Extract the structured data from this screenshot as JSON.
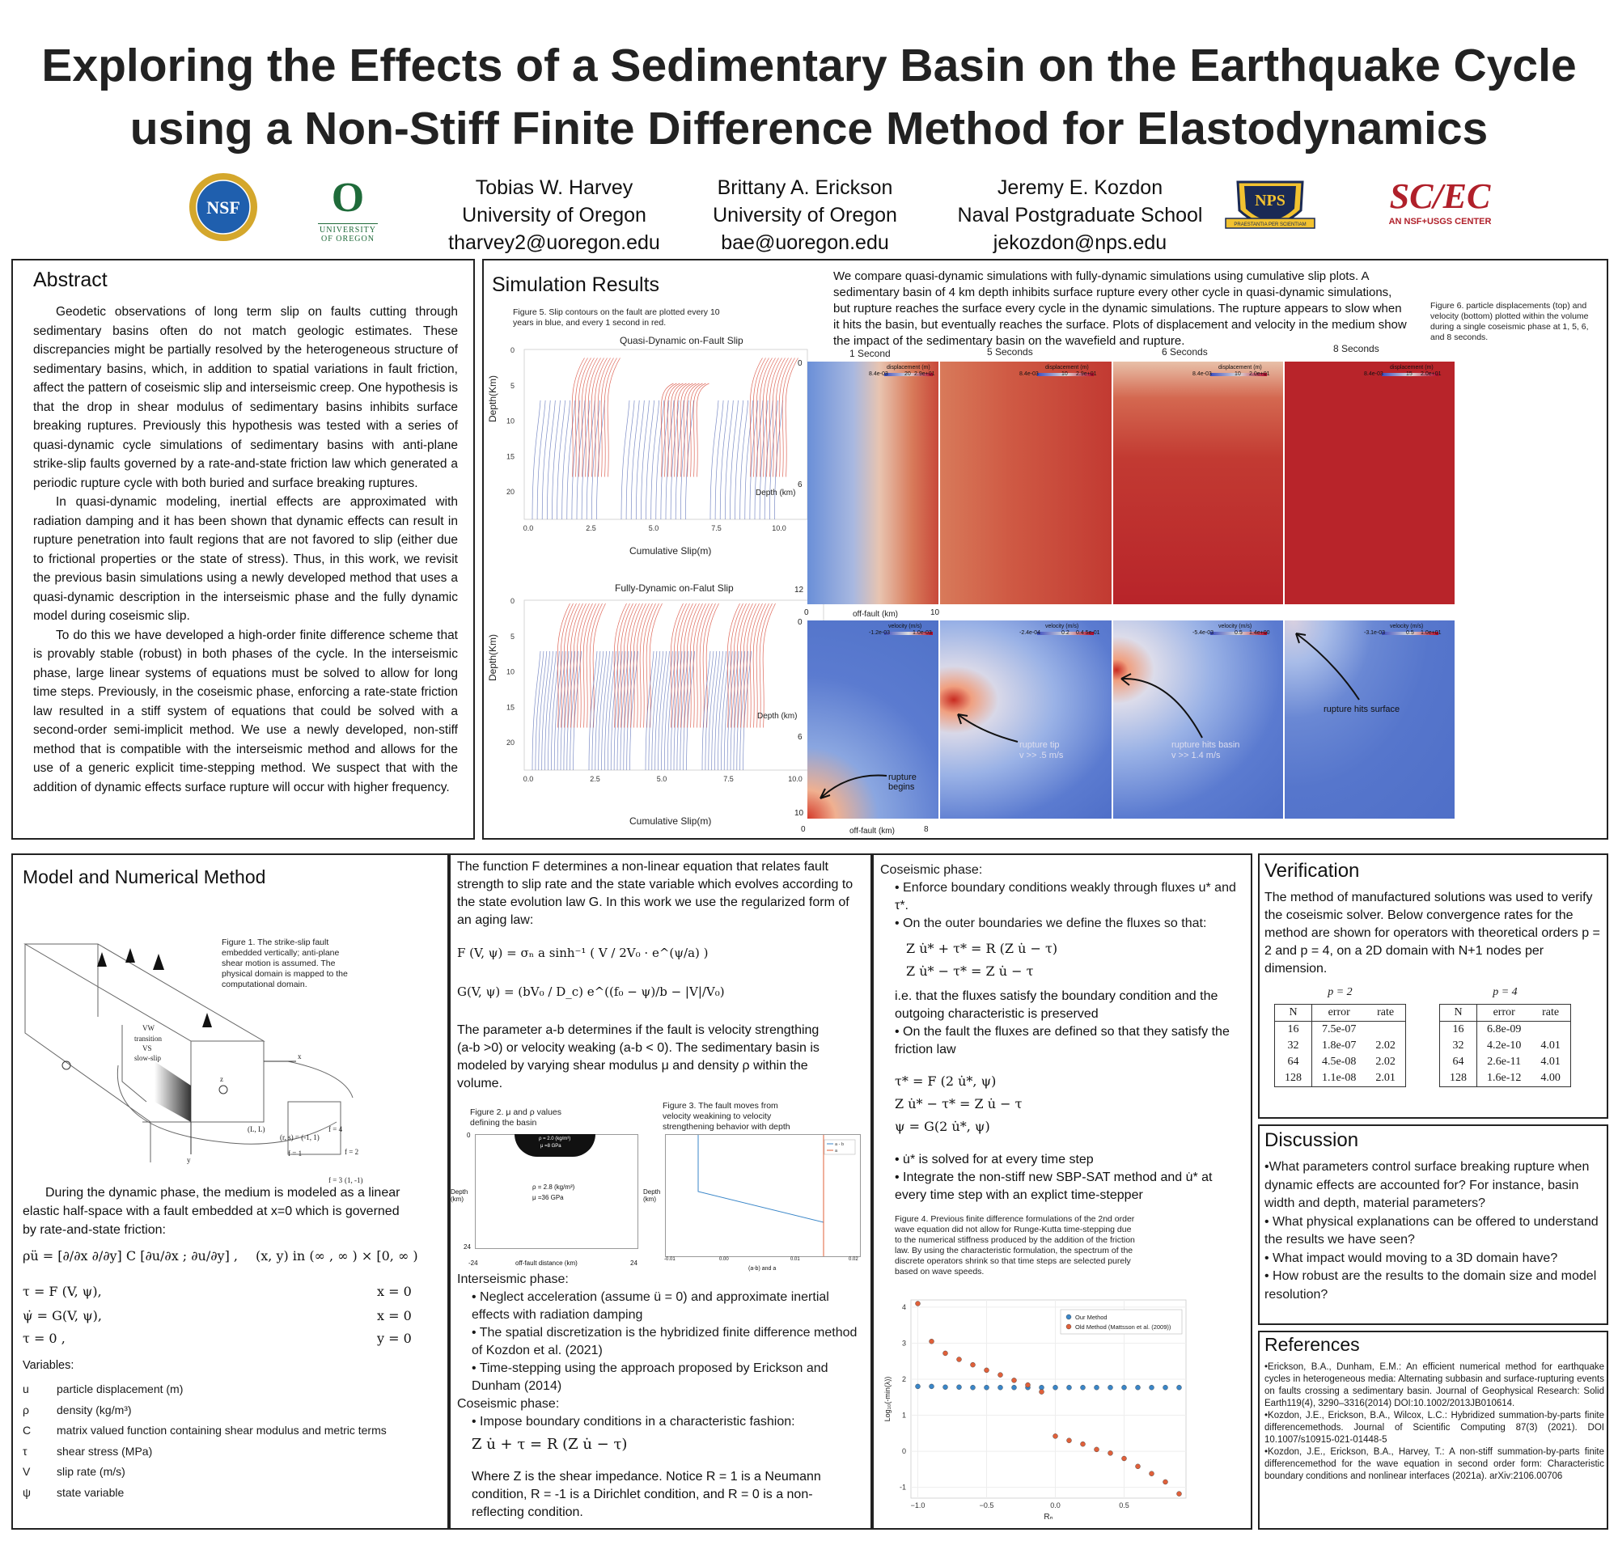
{
  "header": {
    "title_line1": "Exploring the Effects of a Sedimentary Basin on the Earthquake Cycle",
    "title_line2": "using a Non-Stiff Finite Difference Method for Elastodynamics",
    "authors": [
      {
        "name": "Tobias W. Harvey",
        "affiliation": "University of Oregon",
        "email": "tharvey2@uoregon.edu"
      },
      {
        "name": "Brittany A. Erickson",
        "affiliation": "University of Oregon",
        "email": "bae@uoregon.edu"
      },
      {
        "name": "Jeremy E. Kozdon",
        "affiliation": "Naval Postgraduate School",
        "email": "jekozdon@nps.edu"
      }
    ],
    "logos": {
      "nsf": "NSF",
      "uo_letter": "O",
      "uo_line1": "UNIVERSITY",
      "uo_line2": "OF OREGON",
      "nps": "NPS",
      "nps_motto": "PRAESTANTIA PER SCIENTIAM",
      "scec": "SC/EC",
      "scec_sub": "AN NSF+USGS CENTER"
    }
  },
  "abstract": {
    "title": "Abstract",
    "p1": "Geodetic observations of long term slip on faults cutting through sedimentary basins often do not match geologic estimates. These discrepancies might be partially resolved by the heterogeneous structure of sedimentary basins, which, in addition to spatial variations in fault friction, affect the pattern of coseismic slip and interseismic creep. One hypothesis is that the drop in shear modulus of sedimentary basins inhibits surface breaking ruptures. Previously this hypothesis was tested with a series of quasi-dynamic cycle simulations of sedimentary basins with anti-plane strike-slip faults governed by a rate-and-state friction law which generated a periodic rupture cycle with both buried and surface breaking ruptures.",
    "p2": "In quasi-dynamic modeling, inertial effects are approximated with radiation damping and it has been shown that dynamic effects can result in rupture penetration into fault regions that are not favored to slip (either due to frictional properties or the state of stress). Thus, in this work, we revisit the previous basin simulations using a newly developed method that uses a quasi-dynamic description in the interseismic phase and the fully dynamic model during coseismic slip.",
    "p3": "To do this we have developed a high-order finite difference scheme that is provably stable (robust) in both phases of the cycle. In the interseismic phase, large linear systems of equations must be solved to allow for long time steps. Previously, in the coseismic phase, enforcing a rate-state friction law resulted in a stiff system of equations that could be solved with a second-order semi-implicit method. We use a newly developed, non-stiff method that is compatible with the interseismic method and allows for the use of a generic explicit time-stepping method. We suspect that with the addition of dynamic effects surface rupture will occur with higher frequency."
  },
  "simulation": {
    "title": "Simulation Results",
    "intro": "We compare quasi-dynamic simulations with fully-dynamic simulations using cumulative slip plots. A sedimentary basin of 4 km depth inhibits surface rupture every other cycle in quasi-dynamic simulations, but rupture reaches the surface every cycle in the dynamic simulations. The rupture appears to slow when it hits the basin, but eventually reaches the surface.  Plots of displacement and velocity in the medium show the impact of the sedimentary basin on the wavefield and rupture.",
    "fig5_caption": "Figure 5. Slip contours on the fault are plotted every 10 years in blue, and every 1 second in red.",
    "fig6_caption": "Figure 6.  particle displacements (top) and velocity (bottom) plotted within the volume during a single coseismic phase at 1, 5, 6, and 8 seconds.",
    "plot1_title": "Quasi-Dynamic on-Fault Slip",
    "plot2_title": "Fully-Dynamic on-Falut Slip",
    "ylabel": "Depth(Km)",
    "xlabel": "Cumulative Slip(m)",
    "yticks": [
      "0",
      "5",
      "10",
      "15",
      "20"
    ],
    "xticks": [
      "0.0",
      "2.5",
      "5.0",
      "7.5",
      "10.0"
    ],
    "heat_times": [
      "1 Second",
      "5 Seconds",
      "6 Seconds",
      "8 Seconds"
    ],
    "heat_depth_label": "Depth (km)",
    "heat_offfault_label": "off-fault (km)",
    "top_yticks": [
      "0",
      "6",
      "12"
    ],
    "top_xticks": [
      "0",
      "10"
    ],
    "bot_yticks": [
      "0",
      "6",
      "10"
    ],
    "bot_xticks": [
      "0",
      "8"
    ],
    "colorbar_disp": "displacement (m)",
    "colorbar_vel": "velocity (m/s)",
    "disp_cb_ticks": [
      [
        "8.4e-03",
        "20",
        "2.9e+01"
      ],
      [
        "8.4e-03",
        "10",
        "2.9e+01"
      ],
      [
        "8.4e-03",
        "10",
        "2.0e+01"
      ],
      [
        "8.4e-03",
        "15",
        "2.0e+01"
      ]
    ],
    "vel_cb_ticks": [
      [
        "-1.2e-03",
        "",
        "1.0e-03"
      ],
      [
        "-2.4e-04",
        "0.2",
        "0.4 5e-01"
      ],
      [
        "-5.4e-03",
        "0.5",
        "1.4e+00"
      ],
      [
        "-3.1e-03",
        "0.5",
        "1.0e+01"
      ]
    ],
    "annotations": {
      "rupture_begins": "rupture begins",
      "rupture_tip": "rupture tip",
      "rupture_tip_v": "v >> .5 m/s",
      "rupture_hits_basin": "rupture hits basin",
      "rupture_hits_basin_v": "v >> 1.4 m/s",
      "rupture_hits_surface": "rupture hits surface"
    }
  },
  "model": {
    "title": "Model and Numerical Method",
    "fig1_caption": "Figure 1. The strike-slip fault embedded vertically; anti-plane shear motion is assumed. The physical domain is mapped to the computational domain.",
    "fig1_labels": {
      "vw": "VW",
      "transition": "transition",
      "vs": "VS",
      "slowslip": "slow-slip",
      "x": "x",
      "y": "y",
      "z": "z",
      "LL": "(L, L)",
      "rs": "(r, s) = (-1, 1)",
      "f1": "f = 1",
      "f2": "f = 2",
      "f3": "f = 3",
      "f4": "f = 4",
      "corner": "(1, -1)"
    },
    "dynamic_text": "During the dynamic phase, the medium is modeled as a linear elastic half-space with a fault embedded at x=0 which is governed by rate-and-state friction:",
    "eq_main": "ρü = [∂/∂x  ∂/∂y] C [∂u/∂x ; ∂u/∂y] ,",
    "eq_main_domain": "(x, y) in (∞ , ∞ ) × [0, ∞ )",
    "eq_rows": [
      {
        "lhs": "τ = F (V, ψ),",
        "rhs": "x = 0"
      },
      {
        "lhs": "ψ̇ = G(V, ψ),",
        "rhs": "x = 0"
      },
      {
        "lhs": "τ = 0 ,",
        "rhs": "y = 0"
      }
    ],
    "variables_title": "Variables:",
    "variables": [
      {
        "sym": "u",
        "desc": "particle displacement (m)"
      },
      {
        "sym": "ρ",
        "desc": "density (kg/m³)"
      },
      {
        "sym": "C",
        "desc": "matrix valued function containing shear modulus and metric terms"
      },
      {
        "sym": "τ",
        "desc": "shear stress (MPa)"
      },
      {
        "sym": "V",
        "desc": "slip rate (m/s)"
      },
      {
        "sym": "ψ",
        "desc": "state variable"
      }
    ]
  },
  "friction": {
    "intro": "The function F determines a non-linear equation that relates fault strength to slip rate and the state variable which evolves according to the state evolution law G.  In this work we use the regularized form of an aging law:",
    "eq_F": "F (V, ψ) =  σₙ a  sinh⁻¹ ( V / 2V₀ · e^(ψ/a) )",
    "eq_G": "G(V, ψ) =  (bV₀ / D_c) e^((f₀ − ψ)/b − |V|/V₀)",
    "ab_text": "The parameter a-b determines if the fault is velocity strengthing (a-b >0) or velocity weaking (a-b < 0).  The sedimentary basin is modeled by varying shear modulus μ and density ρ within the volume.",
    "fig2_caption": "Figure 2. μ and ρ values defining the basin",
    "fig2_basin_rho": "ρ = 2.0 (kg/m³)",
    "fig2_basin_mu": "μ =8 GPa",
    "fig2_rho": "ρ = 2.8 (kg/m³)",
    "fig2_mu": "μ =36 GPa",
    "fig2_ylabel": "Depth (km)",
    "fig2_xlabel": "off-fault distance (km)",
    "fig2_ticks": {
      "y0": "0",
      "y24": "24",
      "xm24": "-24",
      "x24": "24"
    },
    "fig3_caption": "Figure 3. The fault moves from velocity weakining to velocity strengthening behavior with depth",
    "fig3_ylabel": "Depth (km)",
    "fig3_xlabel": "(a-b) and a",
    "fig3_legend": [
      "a - b",
      "a"
    ],
    "fig3_xticks": [
      "-0.01",
      "0.00",
      "0.01",
      "0.02"
    ],
    "interseismic_title": "Interseismic phase:",
    "interseismic_items": [
      "• Neglect acceleration (assume ü = 0) and approximate inertial effects with radiation damping",
      "• The spatial discretization is the hybridized finite difference method of Kozdon et al. (2021)",
      "• Time-stepping using the approach proposed by Erickson and Dunham (2014)"
    ],
    "coseismic_title": "Coseismic phase:",
    "coseismic_items": [
      "• Impose boundary conditions in a characteristic fashion:"
    ],
    "eq_char": "Z u̇ + τ  =  R (Z u̇ − τ)",
    "char_text": "Where Z is the shear impedance. Notice R = 1 is a Neumann condition, R = -1 is a Dirichlet condition, and R = 0 is a non-reflecting condition."
  },
  "coseismic": {
    "title": "Coseismic phase:",
    "item1": "• Enforce boundary conditions weakly through fluxes u* and τ*.",
    "item2": "• On the outer boundaries we define the fluxes so that:",
    "eq1": "Z u̇* + τ* = R (Z u̇ − τ)",
    "eq2": "Z u̇* − τ* = Z u̇ − τ",
    "text1": "i.e. that the fluxes satisfy the boundary condition and the outgoing characteristic is preserved",
    "item3": "• On the fault the fluxes are defined so that they satisfy the friction law",
    "eq3": "τ* = F (2 u̇*, ψ)",
    "eq4": "Z u̇* − τ* = Z u̇ − τ",
    "eq5": "ψ = G(2 u̇*, ψ)",
    "item4": "• u̇* is solved for at every time step",
    "item5": "• Integrate the non-stiff new SBP-SAT method and u̇* at every time step with an explict time-stepper",
    "fig4_caption": "Figure 4. Previous finite difference formulations of the 2nd order wave equation did not allow for Runge-Kutta time-stepping due to the numerical stiffness produced by the addition of the friction law. By using the characteristic formulation, the spectrum of the discrete operators shrink so that time steps are selected purely based on wave speeds."
  },
  "chart_data": {
    "type": "scatter",
    "ylabel": "Log₁₀(-min(λ))",
    "xlabel": "Rₙ",
    "xlim": [
      -1.05,
      0.95
    ],
    "ylim": [
      -1.3,
      4.2
    ],
    "xticks": [
      -1.0,
      -0.5,
      0.0,
      0.5
    ],
    "xtick_labels": [
      "−1.0",
      "−0.5",
      "0.0",
      "0.5"
    ],
    "yticks": [
      -1,
      0,
      1,
      2,
      3,
      4
    ],
    "legend_position": "top-right",
    "series": [
      {
        "name": "Our Method",
        "color": "#3a86c8",
        "x": [
          -1.0,
          -0.9,
          -0.8,
          -0.7,
          -0.6,
          -0.5,
          -0.4,
          -0.3,
          -0.2,
          -0.1,
          0.0,
          0.1,
          0.2,
          0.3,
          0.4,
          0.5,
          0.6,
          0.7,
          0.8,
          0.9
        ],
        "y": [
          1.8,
          1.8,
          1.78,
          1.78,
          1.77,
          1.77,
          1.77,
          1.77,
          1.77,
          1.77,
          1.77,
          1.77,
          1.77,
          1.77,
          1.77,
          1.77,
          1.77,
          1.77,
          1.77,
          1.77
        ]
      },
      {
        "name": "Old Method (Mattsson et al. (2009))",
        "color": "#e0603a",
        "x": [
          -1.0,
          -0.9,
          -0.8,
          -0.7,
          -0.6,
          -0.5,
          -0.4,
          -0.3,
          -0.2,
          -0.1,
          0.0,
          0.1,
          0.2,
          0.3,
          0.4,
          0.5,
          0.6,
          0.7,
          0.8,
          0.9
        ],
        "y": [
          4.1,
          3.05,
          2.72,
          2.55,
          2.4,
          2.25,
          2.12,
          1.97,
          1.84,
          1.65,
          0.42,
          0.3,
          0.2,
          0.05,
          -0.05,
          -0.2,
          -0.42,
          -0.62,
          -0.85,
          -1.18
        ]
      }
    ]
  },
  "verification": {
    "title": "Verification",
    "text": "The method of manufactured solutions was used to verify the coseismic solver. Below convergence rates for the method are shown for operators with theoretical orders p = 2 and p = 4, on a 2D domain with N+1 nodes per dimension.",
    "tables": [
      {
        "label": "p = 2",
        "headers": [
          "N",
          "error",
          "rate"
        ],
        "rows": [
          [
            "16",
            "7.5e-07",
            ""
          ],
          [
            "32",
            "1.8e-07",
            "2.02"
          ],
          [
            "64",
            "4.5e-08",
            "2.02"
          ],
          [
            "128",
            "1.1e-08",
            "2.01"
          ]
        ]
      },
      {
        "label": "p = 4",
        "headers": [
          "N",
          "error",
          "rate"
        ],
        "rows": [
          [
            "16",
            "6.8e-09",
            ""
          ],
          [
            "32",
            "4.2e-10",
            "4.01"
          ],
          [
            "64",
            "2.6e-11",
            "4.01"
          ],
          [
            "128",
            "1.6e-12",
            "4.00"
          ]
        ]
      }
    ]
  },
  "discussion": {
    "title": "Discussion",
    "items": [
      "•What parameters control surface breaking rupture when dynamic effects are accounted for?  For instance, basin width and depth, material parameters?",
      "• What physical explanations can be offered to understand the results we have seen?",
      "• What impact would moving to a 3D domain have?",
      "• How robust are the results to the domain size and model resolution?"
    ]
  },
  "references": {
    "title": "References",
    "items": [
      "•Erickson, B.A., Dunham, E.M.: An efficient numerical method for earthquake cycles in heterogeneous media: Alternating subbasin and surface-rupturing events on faults crossing a sedimentary basin.  Journal of Geophysical Research:  Solid  Earth119(4), 3290–3316(2014) DOI:10.1002/2013JB010614.",
      "•Kozdon, J.E., Erickson, B.A., Wilcox, L.C.: Hybridized summation-by-parts finite differencemethods. Journal of Scientific Computing 87(3) (2021). DOI 10.1007/s10915-021-01448-5",
      "•Kozdon, J.E., Erickson, B.A., Harvey, T.: A  non-stiff  summation-by-parts finite  differencemethod for the wave equation in second order form: Characteristic boundary conditions and nonlinear interfaces (2021a). arXiv:2106.00706"
    ]
  }
}
